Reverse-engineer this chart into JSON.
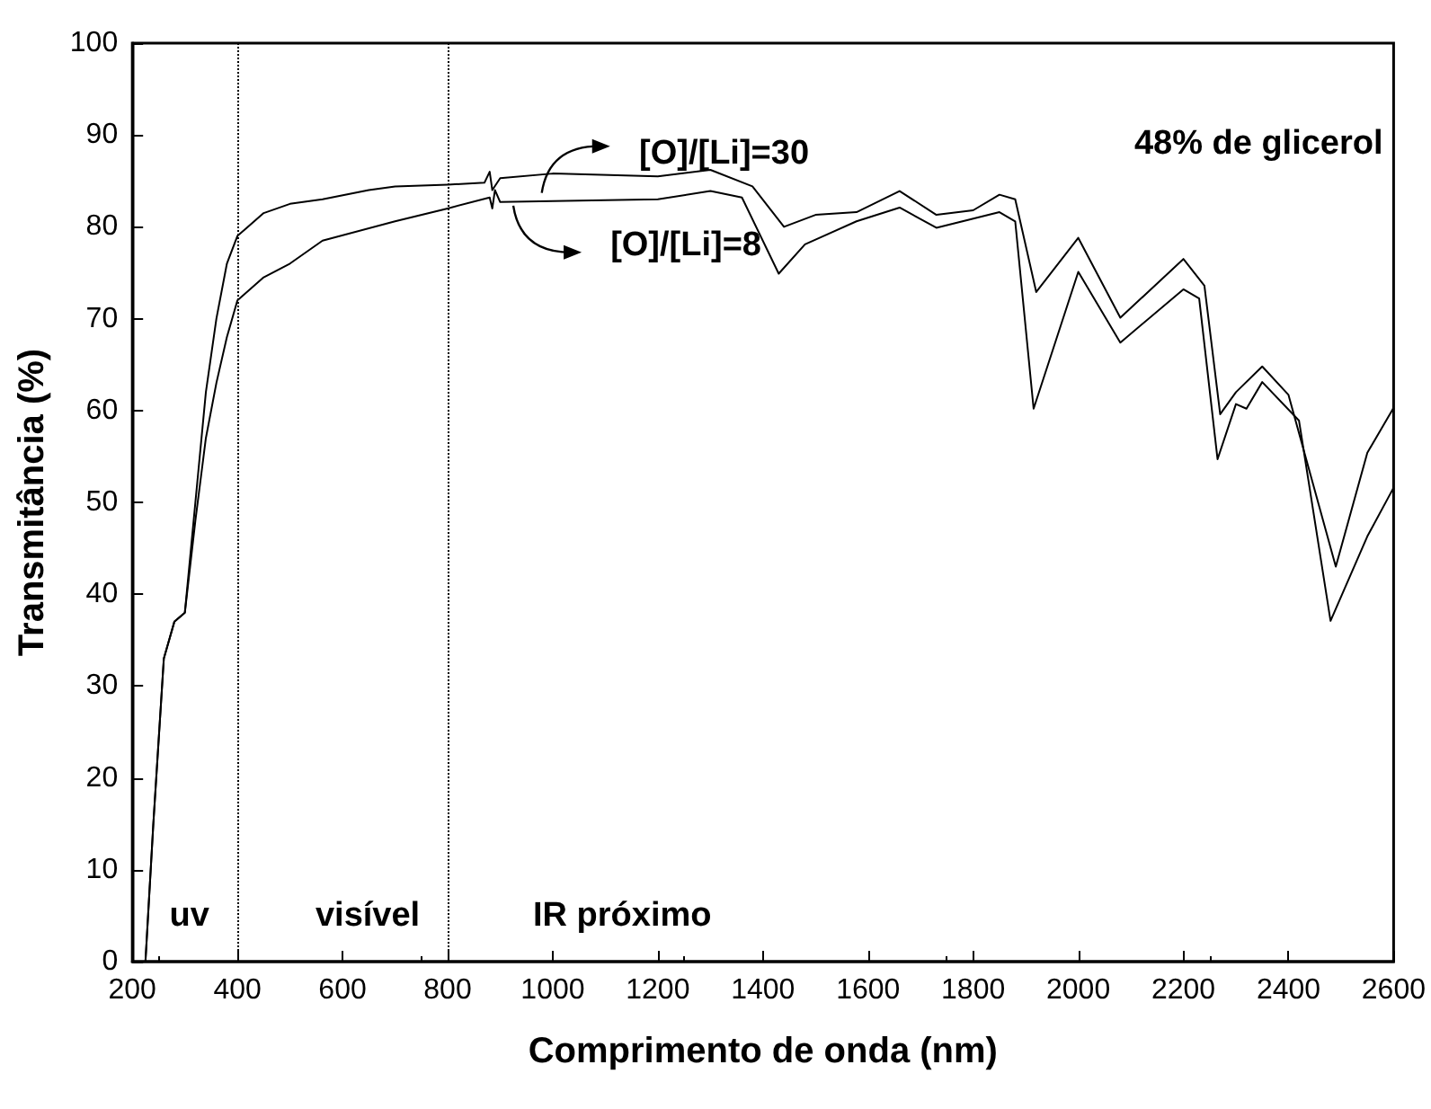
{
  "chart_data": {
    "type": "line",
    "xlabel": "Comprimento de onda (nm)",
    "ylabel": "Transmitância (%)",
    "xlim": [
      200,
      2600
    ],
    "xticks": [
      200,
      400,
      600,
      800,
      1000,
      1200,
      1400,
      1600,
      1800,
      2000,
      2200,
      2400,
      2600
    ],
    "ylim": [
      0,
      100
    ],
    "yticks": [
      0,
      10,
      20,
      30,
      40,
      50,
      60,
      70,
      80,
      90,
      100
    ],
    "grid": false,
    "marker": "none",
    "line_style": "solid",
    "ref_lines": [
      {
        "axis": "x",
        "value": 400,
        "line_style": "dotted",
        "color": "#000000"
      },
      {
        "axis": "x",
        "value": 800,
        "line_style": "dotted",
        "color": "#000000"
      }
    ],
    "annotations": [
      "[O]/[Li]=30",
      "[O]/[Li]=8",
      "48% de glicerol",
      "uv",
      "visível",
      "IR próximo"
    ],
    "series": [
      {
        "name": null,
        "color": "#000000",
        "x": [
          225,
          240,
          260,
          280,
          300,
          320,
          340,
          360,
          380,
          400,
          450,
          500,
          562,
          650,
          700,
          800,
          870,
          880,
          885,
          900,
          1000,
          1200,
          1300,
          1380,
          1440,
          1500,
          1578,
          1660,
          1730,
          1800,
          1850,
          1880,
          1920,
          2000,
          2080,
          2200,
          2240,
          2270,
          2300,
          2350,
          2400,
          2490,
          2550,
          2600
        ],
        "values": [
          0,
          15,
          33,
          37,
          38,
          50,
          62,
          70,
          76,
          79,
          81.5,
          82.5,
          83,
          84,
          84.4,
          84.6,
          84.8,
          86,
          84,
          85.3,
          85.8,
          85.5,
          86.2,
          84.4,
          80,
          81.3,
          81.6,
          83.9,
          81.3,
          81.8,
          83.5,
          83,
          72.9,
          78.8,
          70.1,
          76.5,
          73.6,
          59.6,
          62,
          64.8,
          61.7,
          43,
          55.4,
          60.3
        ]
      },
      {
        "name": null,
        "color": "#000000",
        "x": [
          225,
          240,
          260,
          280,
          300,
          320,
          340,
          360,
          380,
          400,
          450,
          500,
          562,
          700,
          800,
          880,
          885,
          890,
          900,
          1000,
          1200,
          1300,
          1360,
          1430,
          1480,
          1578,
          1660,
          1730,
          1850,
          1880,
          1915,
          2000,
          2080,
          2200,
          2230,
          2265,
          2300,
          2320,
          2350,
          2420,
          2480,
          2550,
          2600
        ],
        "values": [
          0,
          15,
          33,
          37,
          38,
          48,
          57,
          63,
          68,
          72,
          74.5,
          76,
          78.5,
          80.6,
          82,
          83.2,
          82,
          84,
          82.7,
          82.8,
          83,
          83.9,
          83.2,
          74.9,
          78.1,
          80.6,
          82.1,
          79.9,
          81.6,
          80.6,
          60.2,
          75.1,
          67.4,
          73.2,
          72.2,
          54.7,
          60.7,
          60.2,
          63.1,
          58.9,
          37.1,
          46.3,
          51.6
        ]
      }
    ]
  }
}
